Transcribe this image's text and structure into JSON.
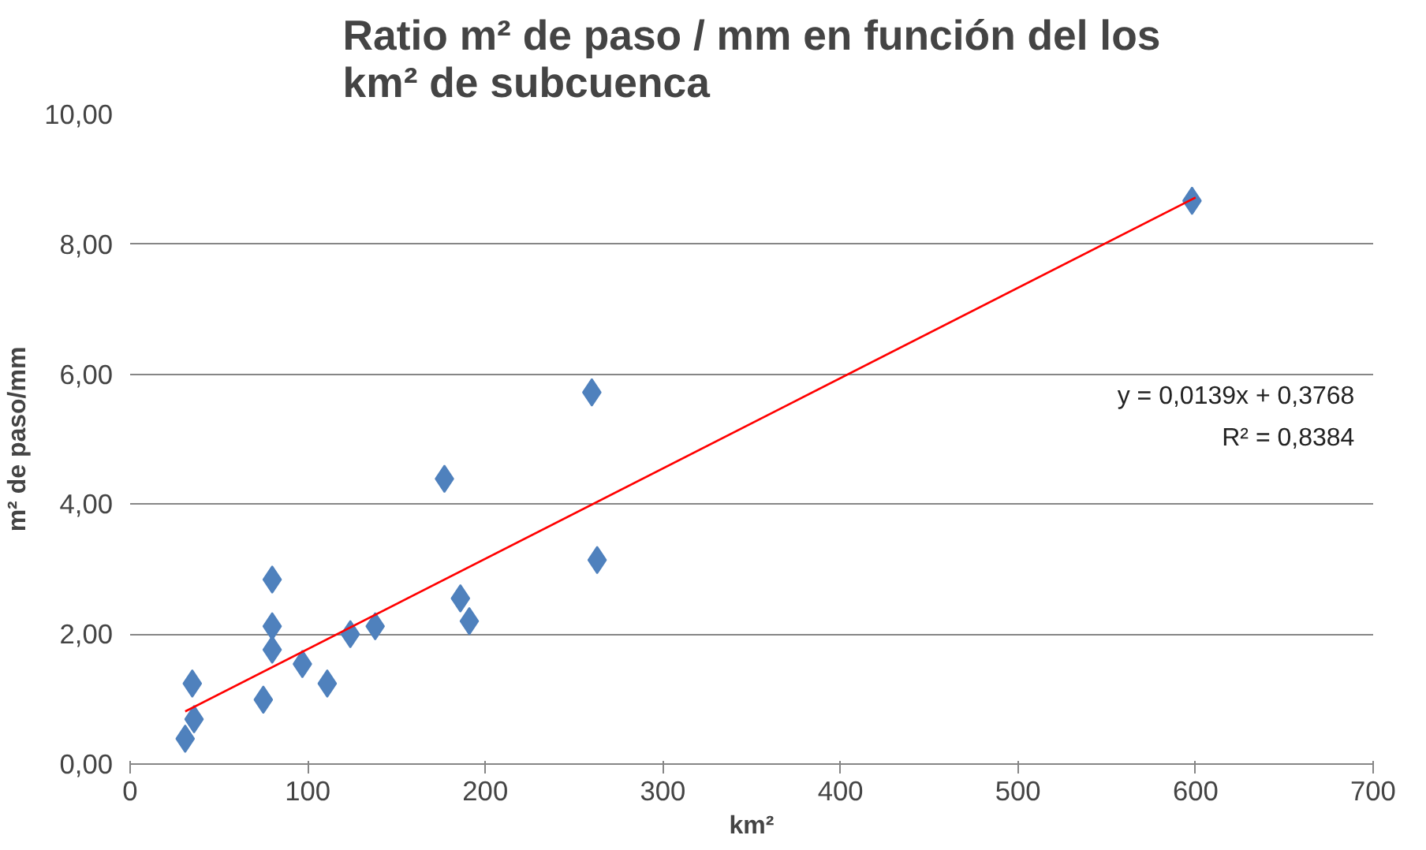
{
  "chart_data": {
    "type": "scatter",
    "title": "Ratio m² de paso / mm en función del los km² de subcuenca",
    "xlabel": "km²",
    "ylabel": "m² de paso/mm",
    "marker": "diamond",
    "grid": "y",
    "xlim": [
      0,
      700
    ],
    "xticks": [
      0,
      100,
      200,
      300,
      400,
      500,
      600,
      700
    ],
    "ylim": [
      0,
      10
    ],
    "yticks": [
      {
        "value": 0,
        "label": "0,00"
      },
      {
        "value": 2,
        "label": "2,00"
      },
      {
        "value": 4,
        "label": "4,00"
      },
      {
        "value": 6,
        "label": "6,00"
      },
      {
        "value": 8,
        "label": "8,00"
      },
      {
        "value": 10,
        "label": "10,00"
      }
    ],
    "series": [
      {
        "color": "#4f81bd",
        "x": [
          177,
          80,
          80,
          80,
          35,
          36,
          31,
          75,
          97,
          111,
          124,
          138,
          186,
          191,
          260,
          263,
          598
        ],
        "values": [
          4.39,
          2.84,
          2.12,
          1.76,
          1.24,
          0.69,
          0.39,
          0.99,
          1.54,
          1.24,
          2.0,
          2.12,
          2.55,
          2.2,
          5.72,
          3.14,
          8.67
        ]
      },
      {
        "type": "line",
        "marker": "none",
        "color": "#ff0000",
        "x": [
          31,
          600
        ],
        "values": [
          0.81,
          8.72
        ]
      }
    ],
    "annotations": [
      "y = 0,0139x + 0,3768",
      "R² = 0,8384"
    ]
  }
}
